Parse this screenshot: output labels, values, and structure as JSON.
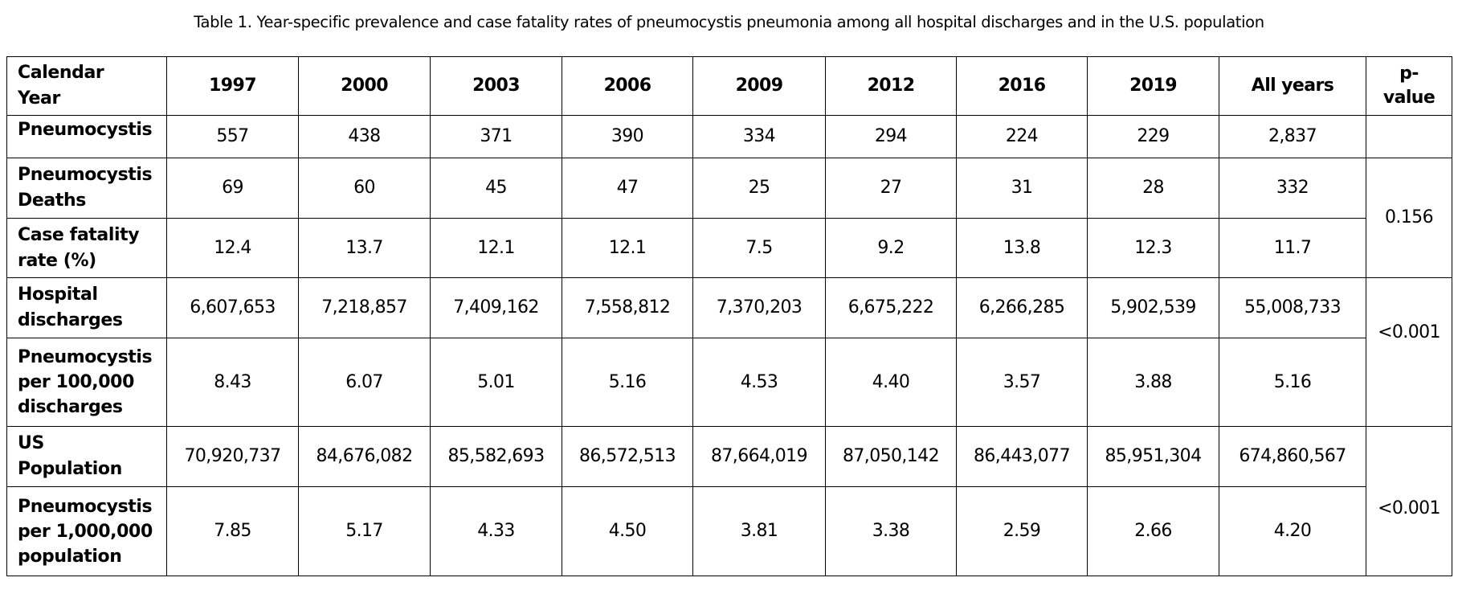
{
  "title": "Table 1. Year-specific prevalence and case fatality rates of pneumocystis pneumonia among all hospital discharges and in the U.S. population",
  "table": {
    "header": {
      "label_line1": "Calendar",
      "label_line2": "Year",
      "years": [
        "1997",
        "2000",
        "2003",
        "2006",
        "2009",
        "2012",
        "2016",
        "2019"
      ],
      "all_years": "All years",
      "pvalue_line1": "p-",
      "pvalue_line2": "value"
    },
    "rows": [
      {
        "label": [
          "Pneumocystis"
        ],
        "values": [
          "557",
          "438",
          "371",
          "390",
          "334",
          "294",
          "224",
          "229"
        ],
        "all": "2,837"
      },
      {
        "label": [
          "Pneumocystis",
          "Deaths"
        ],
        "values": [
          "69",
          "60",
          "45",
          "47",
          "25",
          "27",
          "31",
          "28"
        ],
        "all": "332"
      },
      {
        "label": [
          "Case fatality",
          "rate (%)"
        ],
        "values": [
          "12.4",
          "13.7",
          "12.1",
          "12.1",
          "7.5",
          "9.2",
          "13.8",
          "12.3"
        ],
        "all": "11.7"
      },
      {
        "label": [
          "Hospital",
          "discharges"
        ],
        "values": [
          "6,607,653",
          "7,218,857",
          "7,409,162",
          "7,558,812",
          "7,370,203",
          "6,675,222",
          "6,266,285",
          "5,902,539"
        ],
        "all": "55,008,733"
      },
      {
        "label": [
          "Pneumocystis",
          "per 100,000",
          "discharges"
        ],
        "values": [
          "8.43",
          "6.07",
          "5.01",
          "5.16",
          "4.53",
          "4.40",
          "3.57",
          "3.88"
        ],
        "all": "5.16"
      },
      {
        "label": [
          "US",
          "Population"
        ],
        "values": [
          "70,920,737",
          "84,676,082",
          "85,582,693",
          "86,572,513",
          "87,664,019",
          "87,050,142",
          "86,443,077",
          "85,951,304"
        ],
        "all": "674,860,567"
      },
      {
        "label": [
          "Pneumocystis",
          "per 1,000,000",
          "population"
        ],
        "values": [
          "7.85",
          "5.17",
          "4.33",
          "4.50",
          "3.81",
          "3.38",
          "2.59",
          "2.66"
        ],
        "all": "4.20"
      }
    ],
    "pvalues": {
      "deaths_and_fatality": "0.156",
      "discharges_and_rate": "<0.001",
      "population_and_rate": "<0.001"
    }
  }
}
